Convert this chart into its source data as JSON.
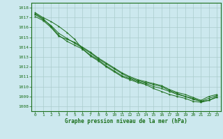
{
  "title": "Graphe pression niveau de la mer (hPa)",
  "xlabel_hours": [
    0,
    1,
    2,
    3,
    4,
    5,
    6,
    7,
    8,
    9,
    10,
    11,
    12,
    13,
    14,
    15,
    16,
    17,
    18,
    19,
    20,
    21,
    22,
    23
  ],
  "ylim": [
    1007.5,
    1018.5
  ],
  "yticks": [
    1008,
    1009,
    1010,
    1011,
    1012,
    1013,
    1014,
    1015,
    1016,
    1017,
    1018
  ],
  "background_color": "#cce8ee",
  "grid_color": "#aacccc",
  "line_color": "#1a6e1a",
  "series": [
    [
      1017.5,
      1017.0,
      1016.6,
      1016.1,
      1015.5,
      1014.8,
      1013.8,
      1013.1,
      1012.6,
      1012.0,
      1011.5,
      1011.0,
      1010.7,
      1010.4,
      1010.2,
      1009.8,
      1009.5,
      1009.2,
      1009.0,
      1008.8,
      1008.5,
      1008.4,
      1008.6,
      1009.0
    ],
    [
      1017.4,
      1016.9,
      1016.1,
      1015.2,
      1014.6,
      1014.2,
      1013.8,
      1013.2,
      1012.7,
      1012.1,
      1011.6,
      1011.1,
      1010.8,
      1010.5,
      1010.3,
      1010.0,
      1009.8,
      1009.5,
      1009.2,
      1009.0,
      1008.8,
      1008.5,
      1008.6,
      1008.9
    ],
    [
      1017.3,
      1016.8,
      1016.2,
      1015.4,
      1014.9,
      1014.4,
      1013.9,
      1013.4,
      1012.8,
      1012.3,
      1011.8,
      1011.3,
      1010.9,
      1010.6,
      1010.4,
      1010.2,
      1010.0,
      1009.6,
      1009.3,
      1009.0,
      1008.7,
      1008.5,
      1008.8,
      1009.1
    ],
    [
      1017.1,
      1016.7,
      1016.0,
      1015.1,
      1014.8,
      1014.5,
      1014.0,
      1013.5,
      1012.9,
      1012.4,
      1011.9,
      1011.4,
      1011.0,
      1010.7,
      1010.5,
      1010.3,
      1010.1,
      1009.7,
      1009.4,
      1009.2,
      1008.9,
      1008.6,
      1009.0,
      1009.2
    ]
  ]
}
